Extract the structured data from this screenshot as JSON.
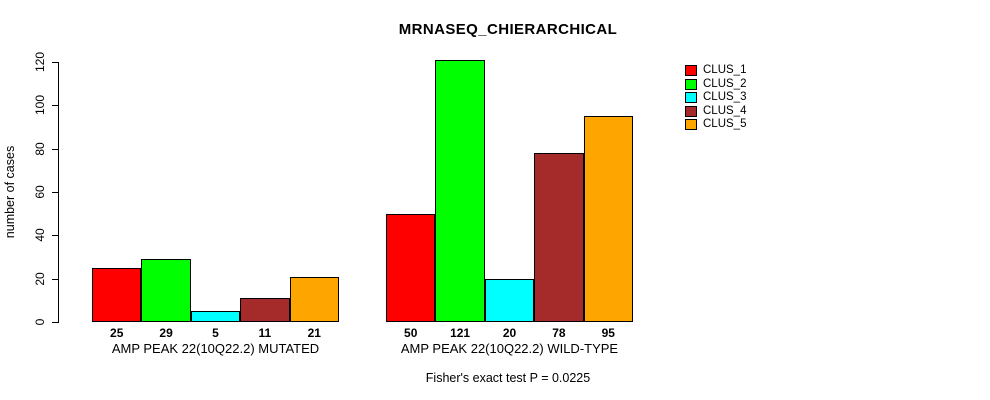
{
  "chart_data": {
    "type": "bar",
    "title": "MRNASEQ_CHIERARCHICAL",
    "ylabel": "number of cases",
    "xlabel": "",
    "ylim": [
      0,
      120
    ],
    "yticks": [
      0,
      20,
      40,
      60,
      80,
      100,
      120
    ],
    "grid": false,
    "legend_position": "right",
    "categories": [
      "AMP PEAK 22(10Q22.2) MUTATED",
      "AMP PEAK 22(10Q22.2) WILD-TYPE"
    ],
    "series": [
      {
        "name": "CLUS_1",
        "color": "#ff0000",
        "values": [
          25,
          50
        ]
      },
      {
        "name": "CLUS_2",
        "color": "#00ff00",
        "values": [
          29,
          121
        ]
      },
      {
        "name": "CLUS_3",
        "color": "#00ffff",
        "values": [
          5,
          20
        ]
      },
      {
        "name": "CLUS_4",
        "color": "#a52a2a",
        "values": [
          11,
          78
        ]
      },
      {
        "name": "CLUS_5",
        "color": "#ffa500",
        "values": [
          21,
          95
        ]
      }
    ],
    "bar_value_labels": [
      [
        25,
        29,
        5,
        11,
        21
      ],
      [
        50,
        121,
        20,
        78,
        95
      ]
    ],
    "footer": "Fisher's exact test P = 0.0225",
    "colors": {
      "background": "#ffffff",
      "axis": "#000000",
      "bar_border": "#000000",
      "text": "#000000"
    }
  }
}
